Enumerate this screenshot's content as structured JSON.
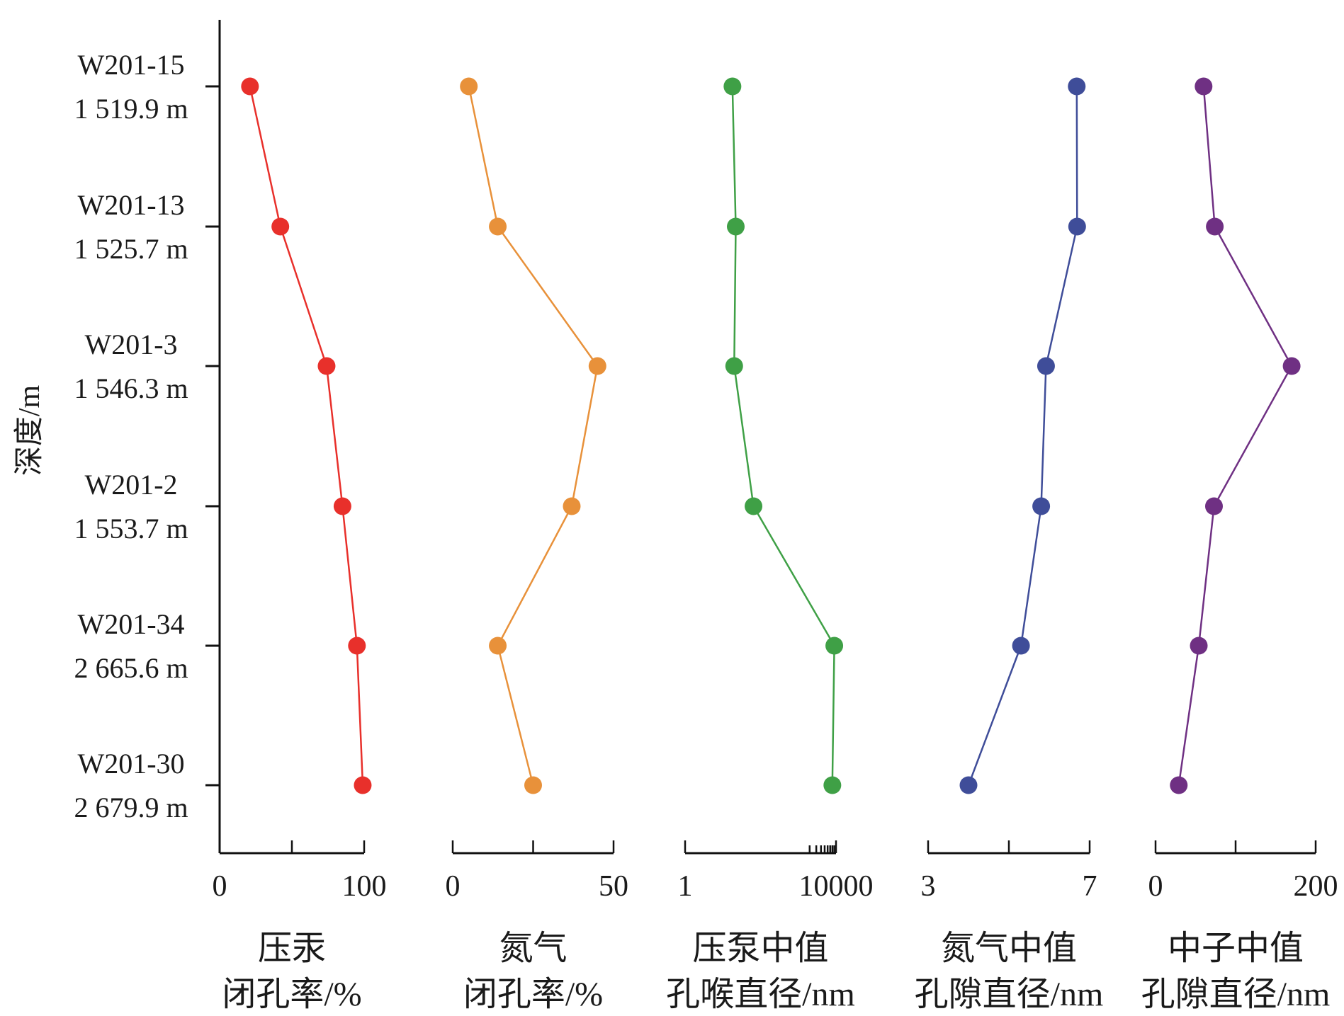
{
  "chart_data": {
    "type": "line",
    "ylabel": "深度/m",
    "samples": [
      {
        "name": "W201-15",
        "depth": "1 519.9 m"
      },
      {
        "name": "W201-13",
        "depth": "1 525.7 m"
      },
      {
        "name": "W201-3",
        "depth": "1 546.3 m"
      },
      {
        "name": "W201-2",
        "depth": "1 553.7 m"
      },
      {
        "name": "W201-34",
        "depth": "2 665.6 m"
      },
      {
        "name": "W201-30",
        "depth": "2 679.9 m"
      }
    ],
    "panels": [
      {
        "title_line1": "压汞",
        "title_line2": "闭孔率/%",
        "scale": "linear",
        "xlim": [
          0,
          100
        ],
        "tick_labels": [
          "0",
          "100"
        ],
        "color": "#e8302b",
        "values": [
          21,
          42,
          74,
          85,
          95,
          99
        ]
      },
      {
        "title_line1": "氮气",
        "title_line2": "闭孔率/%",
        "scale": "linear",
        "xlim": [
          0,
          50
        ],
        "tick_labels": [
          "0",
          "50"
        ],
        "color": "#e8913a",
        "values": [
          5,
          14,
          45,
          37,
          14,
          25
        ]
      },
      {
        "title_line1": "压泵中值",
        "title_line2": "孔喉直径/nm",
        "scale": "log",
        "xlim": [
          1,
          10000
        ],
        "tick_labels": [
          "1",
          "10000"
        ],
        "color": "#3fa046",
        "values": [
          18,
          22,
          20,
          65,
          9000,
          8000
        ]
      },
      {
        "title_line1": "氮气中值",
        "title_line2": "孔隙直径/nm",
        "scale": "linear",
        "xlim": [
          3,
          7
        ],
        "tick_labels": [
          "3",
          "7"
        ],
        "color": "#3f4d99",
        "values": [
          6.68,
          6.69,
          5.92,
          5.8,
          5.3,
          4.0
        ]
      },
      {
        "title_line1": "中子中值",
        "title_line2": "孔隙直径/nm",
        "scale": "linear",
        "xlim": [
          0,
          200
        ],
        "tick_labels": [
          "0",
          "200"
        ],
        "color": "#6f3083",
        "values": [
          60,
          74,
          170,
          73,
          54,
          29
        ]
      }
    ]
  }
}
